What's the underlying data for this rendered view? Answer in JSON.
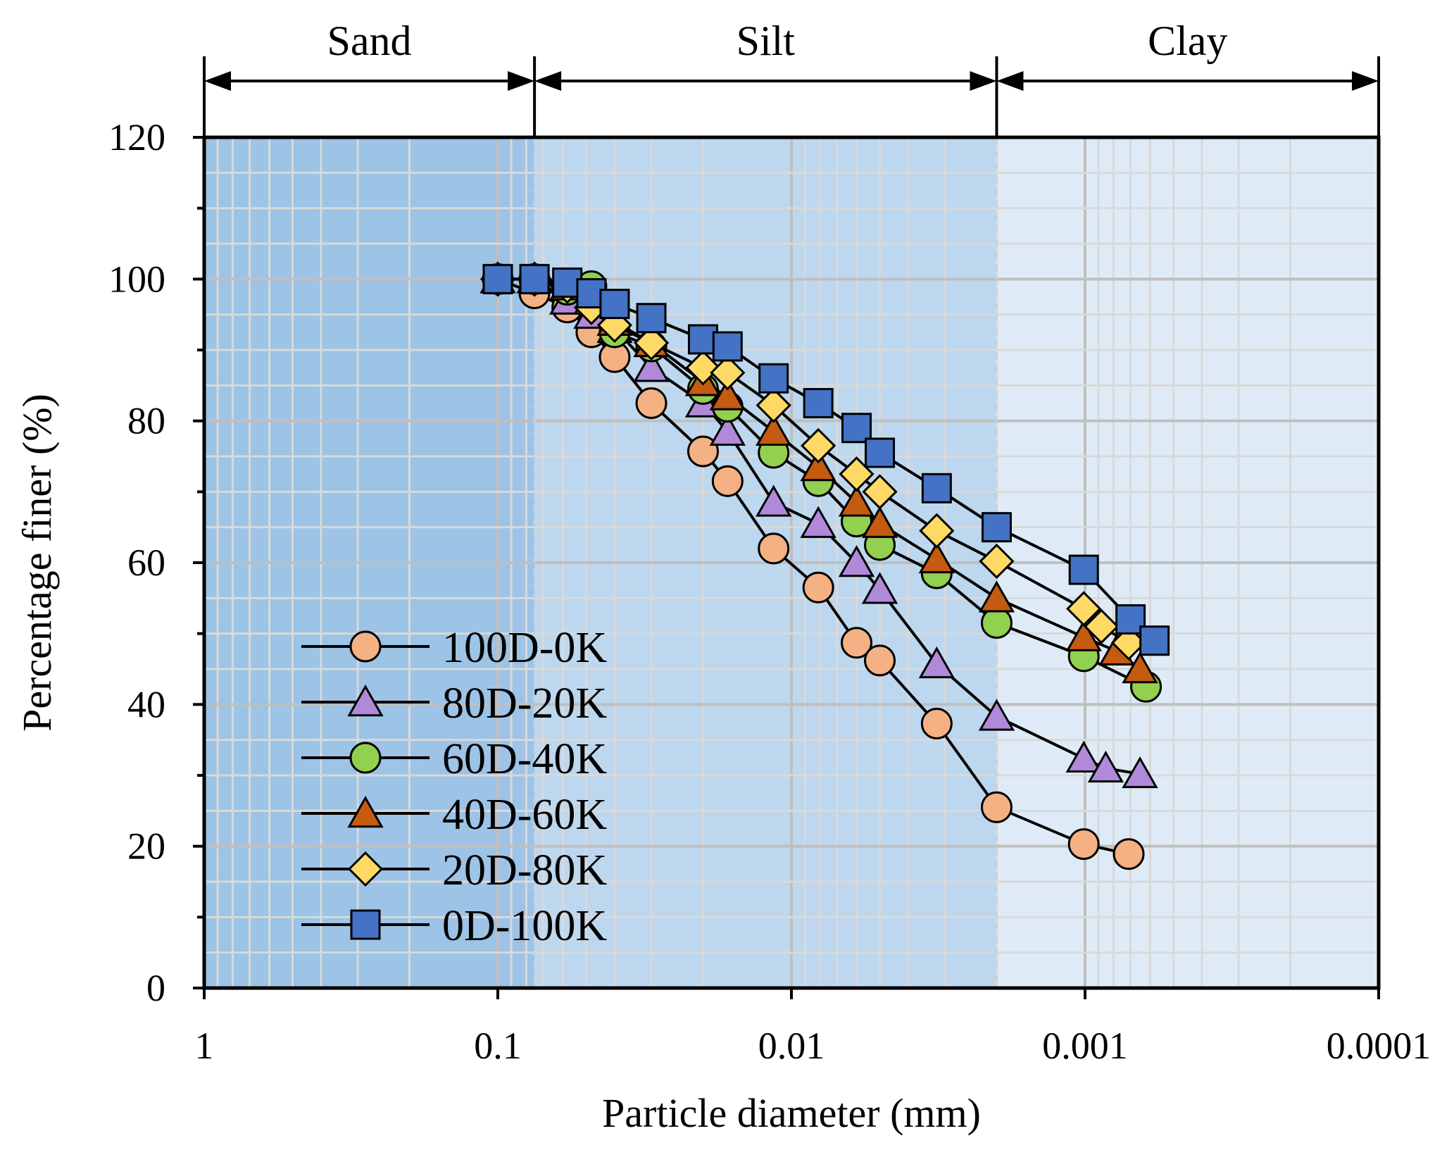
{
  "chart_data": {
    "type": "line",
    "title": "",
    "xlabel": "Particle diameter (mm)",
    "ylabel": "Percentage finer (%)",
    "x_scale": "log",
    "x_reversed": true,
    "xlim": [
      1,
      0.0001
    ],
    "ylim": [
      0,
      120
    ],
    "x_ticks": [
      1,
      0.1,
      0.01,
      0.001,
      0.0001
    ],
    "x_tick_labels": [
      "1",
      "0.1",
      "0.01",
      "0.001",
      "0.0001"
    ],
    "y_ticks": [
      0,
      20,
      40,
      60,
      80,
      100,
      120
    ],
    "y_tick_labels": [
      "0",
      "20",
      "40",
      "60",
      "80",
      "100",
      "120"
    ],
    "grid": true,
    "legend_position": "bottom-left",
    "zones": [
      {
        "name": "Sand",
        "from": 1,
        "to": 0.075,
        "color": "#9dc3e6"
      },
      {
        "name": "Silt",
        "from": 0.075,
        "to": 0.002,
        "color": "#bdd7ee"
      },
      {
        "name": "Clay",
        "from": 0.002,
        "to": 0.0001,
        "color": "#deebf7"
      }
    ],
    "series": [
      {
        "name": "100D-0K",
        "marker": "circle",
        "color": "#f4b183",
        "x": [
          0.1,
          0.075,
          0.058,
          0.048,
          0.04,
          0.03,
          0.02,
          0.0165,
          0.0115,
          0.0081,
          0.006,
          0.005,
          0.0032,
          0.002,
          0.00101,
          0.00071
        ],
        "y": [
          100,
          98,
          96,
          92.5,
          89,
          82.5,
          75.7,
          71.5,
          62,
          56.5,
          48.7,
          46.2,
          37.3,
          25.5,
          20.3,
          18.9
        ]
      },
      {
        "name": "80D-20K",
        "marker": "triangle",
        "color": "#b089d8",
        "x": [
          0.1,
          0.075,
          0.058,
          0.048,
          0.04,
          0.03,
          0.02,
          0.0165,
          0.0115,
          0.0081,
          0.006,
          0.005,
          0.0032,
          0.002,
          0.00101,
          0.00085,
          0.00065
        ],
        "y": [
          100,
          100,
          97,
          95,
          93,
          87.5,
          82.5,
          78.5,
          68.5,
          65.5,
          60,
          56.2,
          45.7,
          38.3,
          32.4,
          31,
          30.2
        ]
      },
      {
        "name": "60D-40K",
        "marker": "circle",
        "color": "#92d050",
        "x": [
          0.1,
          0.075,
          0.058,
          0.048,
          0.04,
          0.03,
          0.02,
          0.0165,
          0.0115,
          0.0081,
          0.006,
          0.005,
          0.0032,
          0.002,
          0.00101,
          0.00062
        ],
        "y": [
          100,
          100,
          98.5,
          99,
          92.5,
          90.5,
          84.5,
          82,
          75.5,
          71.5,
          65.8,
          62.5,
          58.5,
          51.5,
          46.8,
          42.5
        ]
      },
      {
        "name": "40D-60K",
        "marker": "triangle",
        "color": "#c55a11",
        "x": [
          0.1,
          0.075,
          0.058,
          0.048,
          0.04,
          0.03,
          0.02,
          0.0165,
          0.0115,
          0.0081,
          0.006,
          0.005,
          0.0032,
          0.002,
          0.00101,
          0.00078,
          0.00065
        ],
        "y": [
          100,
          100,
          99,
          97,
          94,
          91,
          85.5,
          83.5,
          78.5,
          73.5,
          68.5,
          65.5,
          60.5,
          55,
          49.5,
          47.5,
          45
        ]
      },
      {
        "name": "20D-80K",
        "marker": "diamond",
        "color": "#ffd966",
        "x": [
          0.1,
          0.075,
          0.058,
          0.048,
          0.04,
          0.03,
          0.02,
          0.0165,
          0.0115,
          0.0081,
          0.006,
          0.005,
          0.0032,
          0.002,
          0.00101,
          0.00088,
          0.00071
        ],
        "y": [
          100,
          100,
          99,
          96,
          93.5,
          91,
          87.5,
          86.8,
          82.2,
          76.5,
          72.5,
          70,
          64.5,
          60.2,
          53.5,
          51,
          48.7
        ]
      },
      {
        "name": "0D-100K",
        "marker": "square",
        "color": "#4472c4",
        "x": [
          0.1,
          0.075,
          0.058,
          0.048,
          0.04,
          0.03,
          0.02,
          0.0165,
          0.0115,
          0.0081,
          0.006,
          0.005,
          0.0032,
          0.002,
          0.00101,
          0.0007,
          0.00058
        ],
        "y": [
          100,
          100,
          99.5,
          98,
          96.5,
          94.5,
          91.5,
          90.5,
          86,
          82.5,
          79,
          75.5,
          70.5,
          65,
          59,
          52,
          49
        ]
      }
    ]
  }
}
